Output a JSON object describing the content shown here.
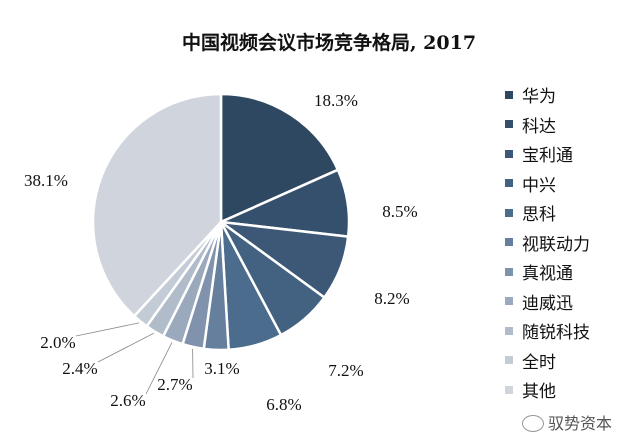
{
  "chart_data": {
    "type": "pie",
    "title": "中国视频会议市场竞争格局, 2017",
    "legend_position": "right",
    "slices": [
      {
        "label": "华为",
        "value": 18.3,
        "display": "18.3%",
        "color": "#2f4862"
      },
      {
        "label": "科达",
        "value": 8.5,
        "display": "8.5%",
        "color": "#35506c"
      },
      {
        "label": "宝利通",
        "value": 8.2,
        "display": "8.2%",
        "color": "#3c5876"
      },
      {
        "label": "中兴",
        "value": 7.2,
        "display": "7.2%",
        "color": "#436282"
      },
      {
        "label": "思科",
        "value": 6.8,
        "display": "6.8%",
        "color": "#4c6c8d"
      },
      {
        "label": "视联动力",
        "value": 3.1,
        "display": "3.1%",
        "color": "#667f9c"
      },
      {
        "label": "真视通",
        "value": 2.7,
        "display": "2.7%",
        "color": "#8193ac"
      },
      {
        "label": "迪威迅",
        "value": 2.6,
        "display": "2.6%",
        "color": "#9ba9bd"
      },
      {
        "label": "随锐科技",
        "value": 2.4,
        "display": "2.4%",
        "color": "#b1bccb"
      },
      {
        "label": "全时",
        "value": 2.0,
        "display": "2.0%",
        "color": "#c3cbd6"
      },
      {
        "label": "其他",
        "value": 38.1,
        "display": "38.1%",
        "color": "#cfd4dd"
      }
    ]
  },
  "watermark": "驭势资本"
}
